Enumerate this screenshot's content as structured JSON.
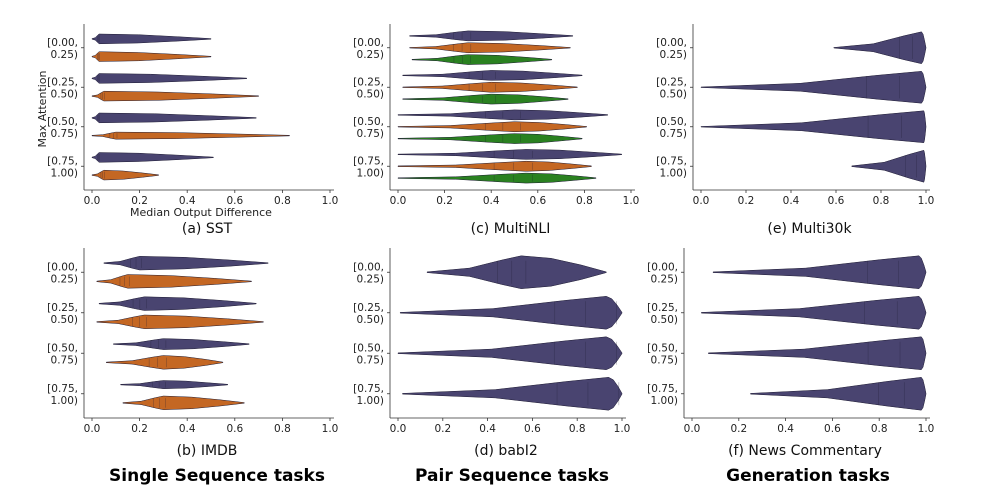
{
  "colors": {
    "series1": "#3f3a68",
    "series2": "#c15f17",
    "series3": "#1f7a14"
  },
  "group_titles": [
    "Single Sequence tasks",
    "Pair Sequence tasks",
    "Generation tasks"
  ],
  "chart_data": [
    {
      "type": "violin",
      "caption": "(a) SST",
      "xlabel": "Median Output Difference",
      "ylabel": "Max Attention",
      "xlim": [
        0,
        1
      ],
      "xticks": [
        "0.0",
        "0.2",
        "0.4",
        "0.6",
        "0.8",
        "1.0"
      ],
      "categories": [
        [
          "[0.00,",
          "0.25)"
        ],
        [
          "[0.25,",
          "0.50)"
        ],
        [
          "[0.50,",
          "0.75)"
        ],
        [
          "[0.75,",
          "1.00)"
        ]
      ],
      "series": [
        {
          "violins": [
            {
              "min": 0.0,
              "peak": 0.03,
              "max": 0.5,
              "w": 0.55
            },
            {
              "min": 0.0,
              "peak": 0.03,
              "max": 0.65,
              "w": 0.55
            },
            {
              "min": 0.0,
              "peak": 0.03,
              "max": 0.69,
              "w": 0.55
            },
            {
              "min": 0.0,
              "peak": 0.03,
              "max": 0.51,
              "w": 0.55
            }
          ]
        },
        {
          "violins": [
            {
              "min": 0.0,
              "peak": 0.03,
              "max": 0.5,
              "w": 0.55
            },
            {
              "min": 0.0,
              "peak": 0.05,
              "max": 0.7,
              "w": 0.55
            },
            {
              "min": 0.0,
              "peak": 0.1,
              "max": 0.83,
              "w": 0.4
            },
            {
              "min": 0.0,
              "peak": 0.05,
              "max": 0.28,
              "w": 0.55
            }
          ]
        }
      ]
    },
    {
      "type": "violin",
      "caption": "(c) MultiNLI",
      "xlim": [
        0,
        1
      ],
      "xticks": [
        "0.0",
        "0.2",
        "0.4",
        "0.6",
        "0.8",
        "1.0"
      ],
      "categories": [
        [
          "[0.00,",
          "0.25)"
        ],
        [
          "[0.25,",
          "0.50)"
        ],
        [
          "[0.50,",
          "0.75)"
        ],
        [
          "[0.75,",
          "1.00)"
        ]
      ],
      "series": [
        {
          "violins": [
            {
              "min": 0.05,
              "peak": 0.3,
              "max": 0.75,
              "w": 0.85
            },
            {
              "min": 0.02,
              "peak": 0.4,
              "max": 0.79,
              "w": 0.85
            },
            {
              "min": 0.0,
              "peak": 0.5,
              "max": 0.9,
              "w": 0.85
            },
            {
              "min": 0.0,
              "peak": 0.55,
              "max": 0.96,
              "w": 0.85
            }
          ]
        },
        {
          "violins": [
            {
              "min": 0.05,
              "peak": 0.3,
              "max": 0.74,
              "w": 0.85
            },
            {
              "min": 0.02,
              "peak": 0.4,
              "max": 0.77,
              "w": 0.85
            },
            {
              "min": 0.0,
              "peak": 0.5,
              "max": 0.81,
              "w": 0.85
            },
            {
              "min": 0.0,
              "peak": 0.55,
              "max": 0.83,
              "w": 0.85
            }
          ]
        },
        {
          "violins": [
            {
              "min": 0.06,
              "peak": 0.3,
              "max": 0.66,
              "w": 0.85
            },
            {
              "min": 0.02,
              "peak": 0.4,
              "max": 0.73,
              "w": 0.85
            },
            {
              "min": 0.0,
              "peak": 0.5,
              "max": 0.79,
              "w": 0.85
            },
            {
              "min": 0.0,
              "peak": 0.55,
              "max": 0.85,
              "w": 0.85
            }
          ]
        }
      ]
    },
    {
      "type": "violin",
      "caption": "(e) Multi30k",
      "xlim": [
        0,
        1
      ],
      "xticks": [
        "0.0",
        "0.2",
        "0.4",
        "0.6",
        "0.8",
        "1.0"
      ],
      "categories": [
        [
          "[0.00,",
          "0.25)"
        ],
        [
          "[0.25,",
          "0.50)"
        ],
        [
          "[0.50,",
          "0.75)"
        ],
        [
          "[0.75,",
          "1.00)"
        ]
      ],
      "series": [
        {
          "violins": [
            {
              "min": 0.59,
              "peak": 0.98,
              "max": 1.0,
              "w": 0.9
            },
            {
              "min": 0.0,
              "peak": 0.98,
              "max": 1.0,
              "w": 0.9
            },
            {
              "min": 0.0,
              "peak": 0.99,
              "max": 1.0,
              "w": 0.9
            },
            {
              "min": 0.67,
              "peak": 0.99,
              "max": 1.0,
              "w": 0.9
            }
          ]
        }
      ]
    },
    {
      "type": "violin",
      "caption": "(b) IMDB",
      "xlim": [
        0,
        1
      ],
      "xticks": [
        "0.0",
        "0.2",
        "0.4",
        "0.6",
        "0.8",
        "1.0"
      ],
      "categories": [
        [
          "[0.00,",
          "0.25)"
        ],
        [
          "[0.25,",
          "0.50)"
        ],
        [
          "[0.50,",
          "0.75)"
        ],
        [
          "[0.75,",
          "1.00)"
        ]
      ],
      "series": [
        {
          "violins": [
            {
              "min": 0.05,
              "peak": 0.2,
              "max": 0.74,
              "w": 0.75
            },
            {
              "min": 0.03,
              "peak": 0.22,
              "max": 0.69,
              "w": 0.75
            },
            {
              "min": 0.09,
              "peak": 0.3,
              "max": 0.66,
              "w": 0.6
            },
            {
              "min": 0.12,
              "peak": 0.3,
              "max": 0.57,
              "w": 0.45
            }
          ]
        },
        {
          "violins": [
            {
              "min": 0.02,
              "peak": 0.15,
              "max": 0.67,
              "w": 0.75
            },
            {
              "min": 0.02,
              "peak": 0.22,
              "max": 0.72,
              "w": 0.75
            },
            {
              "min": 0.06,
              "peak": 0.3,
              "max": 0.55,
              "w": 0.75
            },
            {
              "min": 0.13,
              "peak": 0.3,
              "max": 0.64,
              "w": 0.75
            }
          ]
        }
      ]
    },
    {
      "type": "violin",
      "caption": "(d) babI2",
      "xlim": [
        0,
        1
      ],
      "xticks": [
        "0.0",
        "0.2",
        "0.4",
        "0.6",
        "0.8",
        "1.0"
      ],
      "categories": [
        [
          "[0.00,",
          "0.25)"
        ],
        [
          "[0.25,",
          "0.50)"
        ],
        [
          "[0.50,",
          "0.75)"
        ],
        [
          "[0.75,",
          "1.00)"
        ]
      ],
      "series": [
        {
          "violins": [
            {
              "min": 0.13,
              "peak": 0.55,
              "max": 0.93,
              "w": 0.9
            },
            {
              "min": 0.01,
              "peak": 0.93,
              "max": 1.0,
              "w": 0.9
            },
            {
              "min": 0.0,
              "peak": 0.93,
              "max": 1.0,
              "w": 0.9
            },
            {
              "min": 0.02,
              "peak": 0.94,
              "max": 1.0,
              "w": 0.9
            }
          ]
        }
      ]
    },
    {
      "type": "violin",
      "caption": "(f) News Commentary",
      "xlim": [
        0,
        1
      ],
      "xticks": [
        "0.0",
        "0.2",
        "0.4",
        "0.6",
        "0.8",
        "1.0"
      ],
      "categories": [
        [
          "[0.00,",
          "0.25)"
        ],
        [
          "[0.25,",
          "0.50)"
        ],
        [
          "[0.50,",
          "0.75)"
        ],
        [
          "[0.75,",
          "1.00)"
        ]
      ],
      "series": [
        {
          "violins": [
            {
              "min": 0.09,
              "peak": 0.97,
              "max": 1.0,
              "w": 0.9
            },
            {
              "min": 0.04,
              "peak": 0.97,
              "max": 1.0,
              "w": 0.9
            },
            {
              "min": 0.07,
              "peak": 0.98,
              "max": 1.0,
              "w": 0.9
            },
            {
              "min": 0.25,
              "peak": 0.98,
              "max": 1.0,
              "w": 0.9
            }
          ]
        }
      ]
    }
  ]
}
